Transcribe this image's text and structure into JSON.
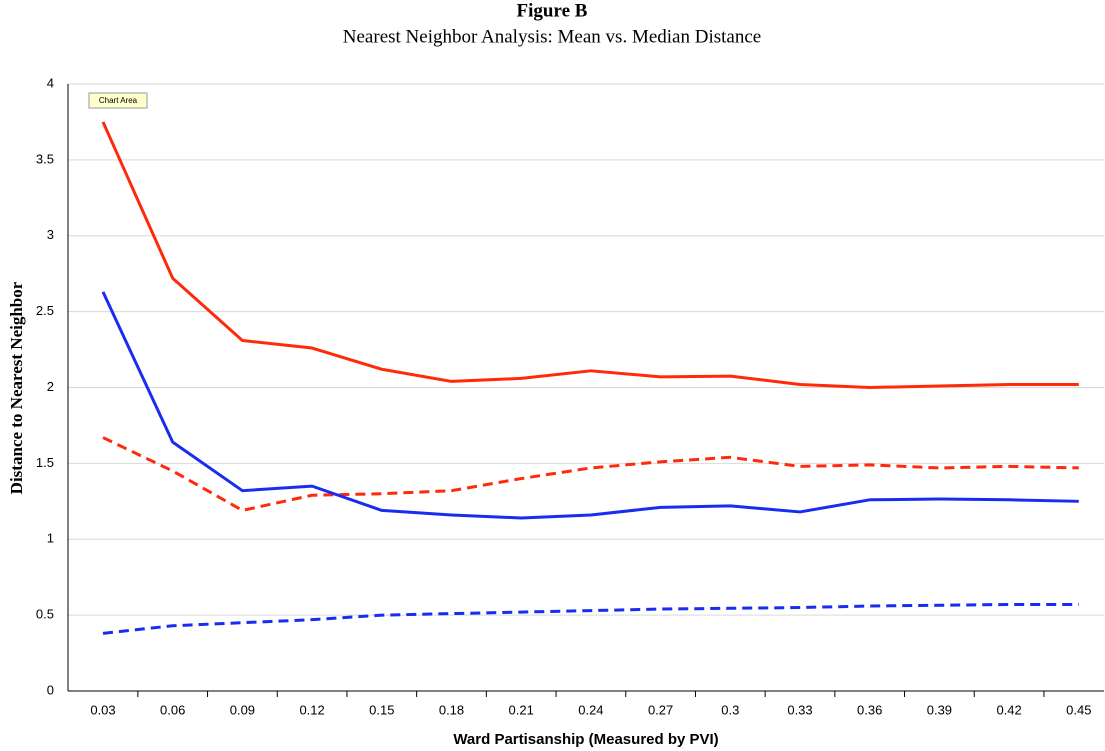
{
  "chart_data": {
    "type": "line",
    "title": "Figure B",
    "subtitle": "Nearest Neighbor Analysis: Mean vs. Median Distance",
    "x_label": "Ward Partisanship (Measured by PVI)",
    "y_label": "Distance to Nearest Neighbor",
    "tooltip": "Chart Area",
    "categories": [
      "0.03",
      "0.06",
      "0.09",
      "0.12",
      "0.15",
      "0.18",
      "0.21",
      "0.24",
      "0.27",
      "0.3",
      "0.33",
      "0.36",
      "0.39",
      "0.42",
      "0.45"
    ],
    "series": [
      {
        "color": "#ff2a0a",
        "dashed": false,
        "values": [
          3.75,
          2.72,
          2.31,
          2.26,
          2.12,
          2.04,
          2.06,
          2.11,
          2.07,
          2.075,
          2.02,
          2.0,
          2.01,
          2.02,
          2.02
        ]
      },
      {
        "color": "#ff2a0a",
        "dashed": true,
        "values": [
          1.67,
          1.45,
          1.19,
          1.29,
          1.3,
          1.32,
          1.4,
          1.47,
          1.51,
          1.54,
          1.48,
          1.49,
          1.47,
          1.48,
          1.47
        ]
      },
      {
        "color": "#1a2cf0",
        "dashed": false,
        "values": [
          2.63,
          1.64,
          1.32,
          1.35,
          1.19,
          1.16,
          1.14,
          1.16,
          1.21,
          1.22,
          1.18,
          1.26,
          1.265,
          1.26,
          1.25
        ]
      },
      {
        "color": "#1a2cf0",
        "dashed": true,
        "values": [
          0.38,
          0.43,
          0.45,
          0.47,
          0.5,
          0.51,
          0.52,
          0.53,
          0.54,
          0.545,
          0.55,
          0.56,
          0.565,
          0.57,
          0.57
        ]
      }
    ],
    "ylim": [
      0,
      4
    ],
    "yticks": [
      0,
      0.5,
      1,
      1.5,
      2,
      2.5,
      3,
      3.5,
      4
    ],
    "grid": true
  }
}
